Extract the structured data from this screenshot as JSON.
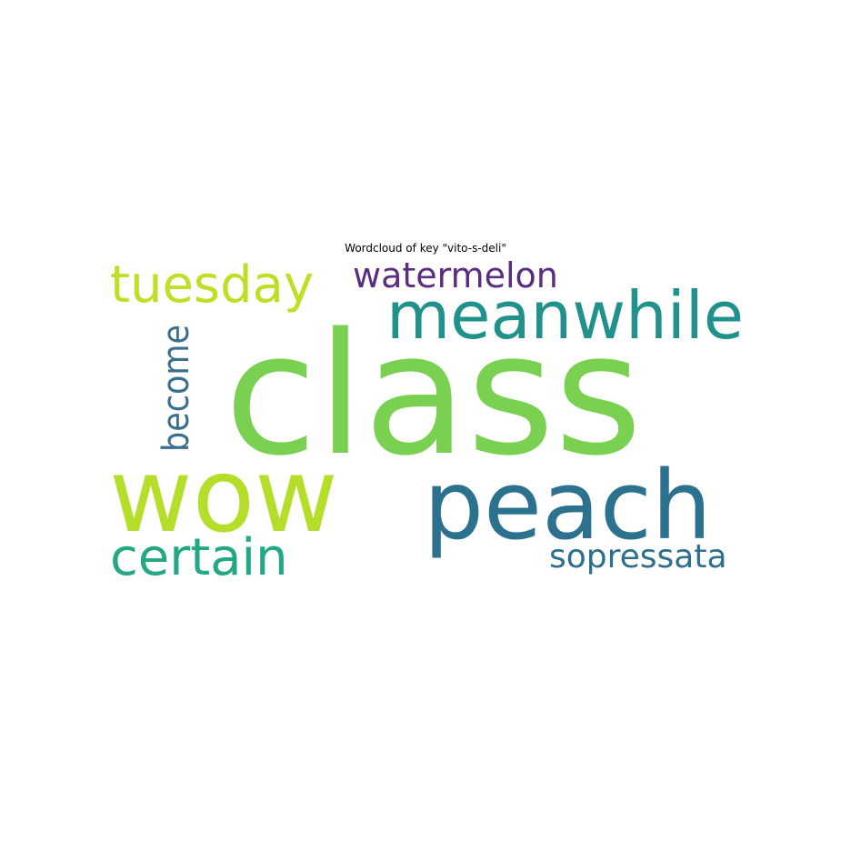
{
  "chart_data": {
    "type": "wordcloud",
    "title": "Wordcloud of key \"vito-s-deli\"",
    "words": [
      {
        "text": "class",
        "color": "#7ad151",
        "orientation": "horizontal"
      },
      {
        "text": "wow",
        "color": "#b5de2b",
        "orientation": "horizontal"
      },
      {
        "text": "peach",
        "color": "#2c728e",
        "orientation": "horizontal"
      },
      {
        "text": "meanwhile",
        "color": "#21918c",
        "orientation": "horizontal"
      },
      {
        "text": "tuesday",
        "color": "#bddf26",
        "orientation": "horizontal"
      },
      {
        "text": "certain",
        "color": "#22a884",
        "orientation": "horizontal"
      },
      {
        "text": "watermelon",
        "color": "#5a2d82",
        "orientation": "horizontal"
      },
      {
        "text": "become",
        "color": "#3b6f8e",
        "orientation": "vertical"
      },
      {
        "text": "sopressata",
        "color": "#2d708e",
        "orientation": "horizontal"
      }
    ]
  }
}
